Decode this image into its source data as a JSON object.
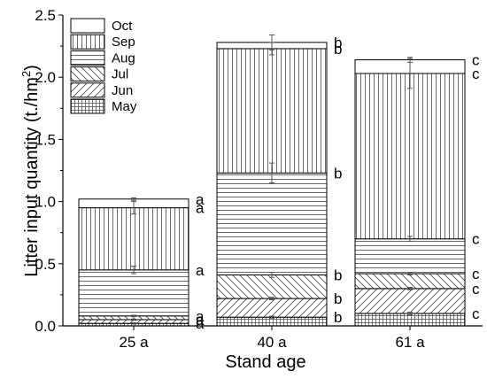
{
  "chart_data": {
    "type": "bar",
    "stacked": true,
    "xlabel": "Stand age",
    "ylabel": "Litter input quantity (t./hm²)",
    "ylabel_main": "Litter input quantity (t./hm",
    "ylabel_sup": "2",
    "ylabel_tail": ")",
    "ylim": [
      0,
      2.5
    ],
    "yticks": [
      "0.0",
      "0.5",
      "1.0",
      "1.5",
      "2.0",
      "2.5"
    ],
    "categories": [
      "25 a",
      "40 a",
      "61 a"
    ],
    "series": [
      {
        "name": "May",
        "values": [
          0.02,
          0.07,
          0.1
        ],
        "errors": [
          0.005,
          0.008,
          0.01
        ],
        "letters": [
          "a",
          "b",
          "c"
        ],
        "pattern": "grid"
      },
      {
        "name": "Jun",
        "values": [
          0.03,
          0.15,
          0.2
        ],
        "errors": [
          0.005,
          0.01,
          0.01
        ],
        "letters": [
          "a",
          "b",
          "c"
        ],
        "pattern": "fdiag"
      },
      {
        "name": "Jul",
        "values": [
          0.03,
          0.19,
          0.12
        ],
        "errors": [
          0.005,
          0.02,
          0.01
        ],
        "letters": [
          "a",
          "b",
          "c"
        ],
        "pattern": "bdiag"
      },
      {
        "name": "Aug",
        "values": [
          0.37,
          0.82,
          0.28
        ],
        "errors": [
          0.03,
          0.08,
          0.02
        ],
        "letters": [
          "a",
          "b",
          "c"
        ],
        "pattern": "hlines"
      },
      {
        "name": "Sep",
        "values": [
          0.5,
          1.0,
          1.33
        ],
        "errors": [
          0.05,
          0.05,
          0.12
        ],
        "letters": [
          "a",
          "b",
          "c"
        ],
        "pattern": "vlines"
      },
      {
        "name": "Oct",
        "values": [
          0.07,
          0.05,
          0.11
        ],
        "errors": [
          0.01,
          0.06,
          0.02
        ],
        "letters": [
          "a",
          "b",
          "c"
        ],
        "pattern": "blank"
      }
    ],
    "legend_position": "top-left",
    "grid": false
  }
}
